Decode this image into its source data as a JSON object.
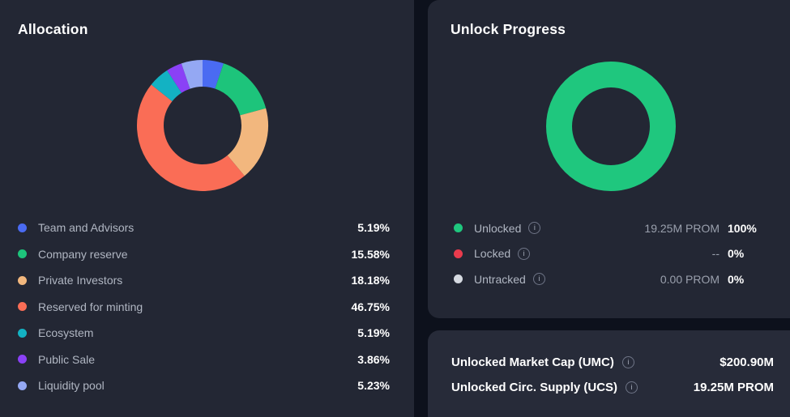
{
  "theme": {
    "page_bg": "#0d111c",
    "card_bg": "#232734",
    "stats_card_bg": "#272b39",
    "label_color": "#b0b6c2",
    "muted_value_color": "#9aa0ad",
    "text_white": "#ffffff"
  },
  "allocation": {
    "title": "Allocation",
    "items": [
      {
        "label": "Team and Advisors",
        "pct": "5.19%",
        "color": "#4a6bf2"
      },
      {
        "label": "Company reserve",
        "pct": "15.58%",
        "color": "#1dc47b"
      },
      {
        "label": "Private Investors",
        "pct": "18.18%",
        "color": "#f2b77e"
      },
      {
        "label": "Reserved for minting",
        "pct": "46.75%",
        "color": "#fa6d56"
      },
      {
        "label": "Ecosystem",
        "pct": "5.19%",
        "color": "#13b2c3"
      },
      {
        "label": "Public Sale",
        "pct": "3.86%",
        "color": "#8a41f6"
      },
      {
        "label": "Liquidity pool",
        "pct": "5.23%",
        "color": "#94a8f3"
      }
    ]
  },
  "unlock": {
    "title": "Unlock Progress",
    "items": [
      {
        "label": "Unlocked",
        "amount": "19.25M PROM",
        "pct": "100%",
        "color": "#1fc77e"
      },
      {
        "label": "Locked",
        "amount": "--",
        "pct": "0%",
        "color": "#e93b4d"
      },
      {
        "label": "Untracked",
        "amount": "0.00 PROM",
        "pct": "0%",
        "color": "#d6dae1"
      }
    ],
    "info_icon_glyph": "i"
  },
  "stats": {
    "rows": [
      {
        "label": "Unlocked Market Cap (UMC)",
        "value": "$200.90M"
      },
      {
        "label": "Unlocked Circ. Supply (UCS)",
        "value": "19.25M PROM"
      }
    ]
  },
  "chart_data": [
    {
      "type": "pie",
      "variant": "donut",
      "title": "Allocation",
      "unit": "%",
      "start_angle_deg": -90,
      "direction": "clockwise",
      "series": [
        {
          "name": "Team and Advisors",
          "value": 5.19,
          "color": "#4a6bf2"
        },
        {
          "name": "Company reserve",
          "value": 15.58,
          "color": "#1dc47b"
        },
        {
          "name": "Private Investors",
          "value": 18.18,
          "color": "#f2b77e"
        },
        {
          "name": "Reserved for minting",
          "value": 46.75,
          "color": "#fa6d56"
        },
        {
          "name": "Ecosystem",
          "value": 5.19,
          "color": "#13b2c3"
        },
        {
          "name": "Public Sale",
          "value": 3.86,
          "color": "#8a41f6"
        },
        {
          "name": "Liquidity pool",
          "value": 5.23,
          "color": "#94a8f3"
        }
      ]
    },
    {
      "type": "pie",
      "variant": "donut",
      "title": "Unlock Progress",
      "unit": "%",
      "start_angle_deg": -90,
      "direction": "clockwise",
      "series": [
        {
          "name": "Unlocked",
          "value": 100,
          "color": "#1fc77e"
        },
        {
          "name": "Locked",
          "value": 0,
          "color": "#e93b4d"
        },
        {
          "name": "Untracked",
          "value": 0,
          "color": "#d6dae1"
        }
      ]
    }
  ]
}
